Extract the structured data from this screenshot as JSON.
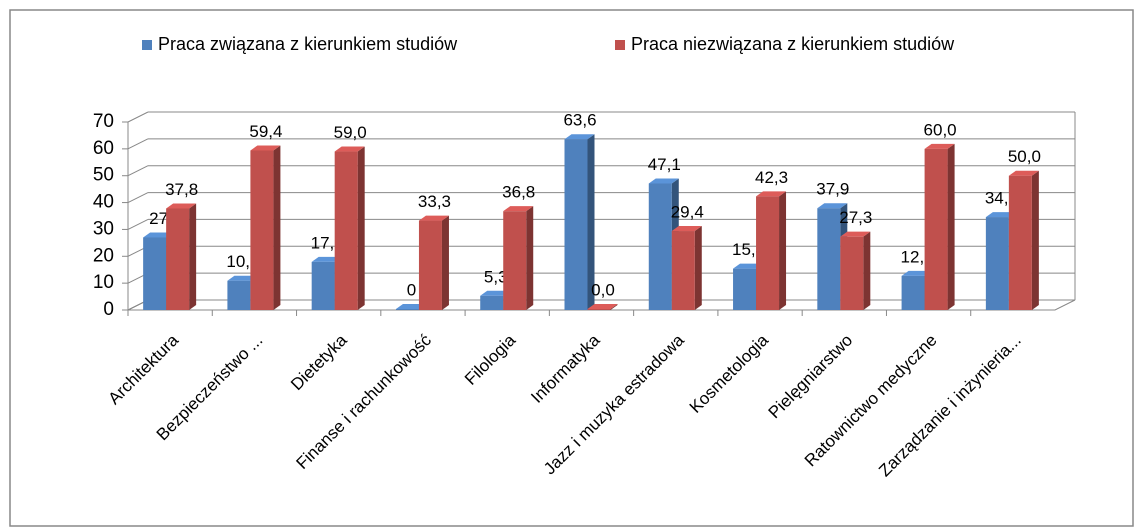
{
  "chart_data": {
    "type": "bar",
    "categories": [
      "Architektura",
      "Bezpieczeństwo ...",
      "Dietetyka",
      "Finanse i rachunkowość",
      "Filologia",
      "Informatyka",
      "Jazz i muzyka estradowa",
      "Kosmetologia",
      "Pielęgniarstwo",
      "Ratownictwo medyczne",
      "Zarządzanie i inżynieria..."
    ],
    "series": [
      {
        "name": "Praca związana z kierunkiem studiów",
        "color": "#4f81bd",
        "values": [
          27,
          10.9,
          17.9,
          0,
          5.3,
          63.6,
          47.1,
          15.4,
          37.9,
          12.7,
          34.6
        ],
        "value_labels": [
          "27",
          "10,9",
          "17,9",
          "0",
          "5,3",
          "63,6",
          "47,1",
          "15,4",
          "37,9",
          "12,7",
          "34,6"
        ]
      },
      {
        "name": "Praca niezwiązana z kierunkiem studiów",
        "color": "#c0504d",
        "values": [
          37.8,
          59.4,
          59.0,
          33.3,
          36.8,
          0.0,
          29.4,
          42.3,
          27.3,
          60.0,
          50.0
        ],
        "value_labels": [
          "37,8",
          "59,4",
          "59,0",
          "33,3",
          "36,8",
          "0,0",
          "29,4",
          "42,3",
          "27,3",
          "60,0",
          "50,0"
        ]
      }
    ],
    "ylim": [
      0,
      70
    ],
    "yticks": [
      0,
      10,
      20,
      30,
      40,
      50,
      60,
      70
    ],
    "grid": true,
    "legend": "top"
  }
}
